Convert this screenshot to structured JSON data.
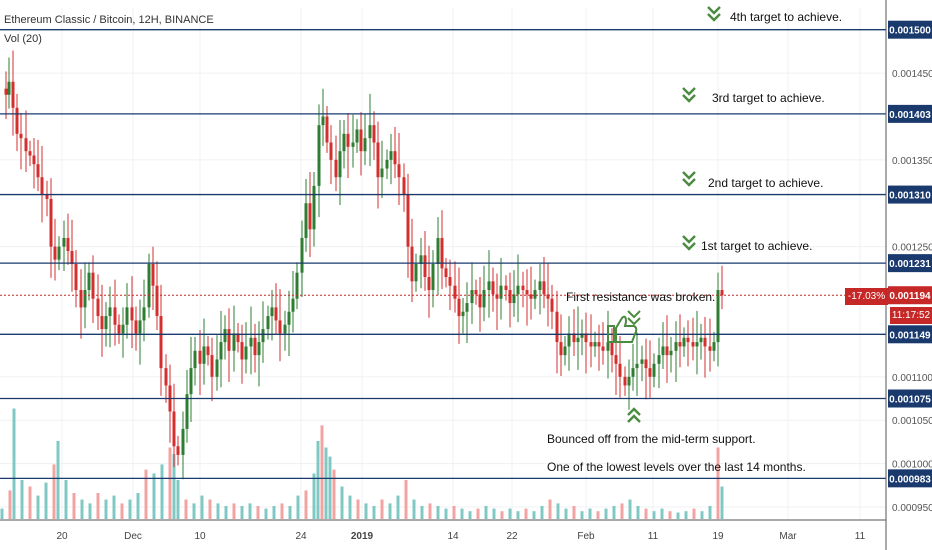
{
  "header": {
    "symbol": "Ethereum Classic / Bitcoin, 12H, BINANCE",
    "volume_indicator": "Vol (20)"
  },
  "price_badge": {
    "change": "-17.03%",
    "countdown": "11:17:52"
  },
  "colors": {
    "up_candle": "#2e7d32",
    "down_candle": "#d32f2f",
    "level_line": "#1a3a6e",
    "current_price": "#c62828",
    "volume_up": "#7fc8c3",
    "volume_down": "#f4a3a3",
    "annotation_icon": "#4a8c3f"
  },
  "chart_data": {
    "type": "candlestick",
    "x_tick_labels": [
      "20",
      "Dec",
      "10",
      "24",
      "2019",
      "14",
      "22",
      "Feb",
      "11",
      "19",
      "Mar",
      "11"
    ],
    "y_tick_labels": [
      "0.001450",
      "0.001350",
      "0.001250",
      "0.001100",
      "0.001050",
      "0.001000",
      "0.000950"
    ],
    "ylim": [
      0.000935,
      0.001525
    ],
    "levels": [
      {
        "value": 0.0015,
        "label": "0.001500"
      },
      {
        "value": 0.001403,
        "label": "0.001403"
      },
      {
        "value": 0.00131,
        "label": "0.001310"
      },
      {
        "value": 0.001231,
        "label": "0.001231"
      },
      {
        "value": 0.001149,
        "label": "0.001149"
      },
      {
        "value": 0.001075,
        "label": "0.001075"
      },
      {
        "value": 0.000983,
        "label": "0.000983"
      }
    ],
    "current_price": {
      "value": 0.001194,
      "label": "0.001194"
    },
    "annotations": [
      {
        "id": "target4",
        "text": "4th target to achieve.",
        "marker": "down-chevrons",
        "anchor_price": 0.0015
      },
      {
        "id": "target3",
        "text": "3rd target to achieve.",
        "marker": "down-chevrons",
        "anchor_price": 0.001403
      },
      {
        "id": "target2",
        "text": "2nd target to achieve.",
        "marker": "down-chevrons",
        "anchor_price": 0.00131
      },
      {
        "id": "target1",
        "text": "1st target to achieve.",
        "marker": "down-chevrons",
        "anchor_price": 0.001231
      },
      {
        "id": "resistance",
        "text": "First resistance was broken.",
        "marker": "thumbs-up",
        "anchor_price": 0.001149
      },
      {
        "id": "support",
        "text": "Bounced off from the mid-term support.",
        "marker": "up-chevrons",
        "anchor_price": 0.001075
      },
      {
        "id": "lowest",
        "text": "One of the lowest levels over the last 14 months.",
        "marker": "none",
        "anchor_price": 0.000983
      }
    ],
    "price_path": [
      [
        0,
        0.001432
      ],
      [
        4,
        0.001425
      ],
      [
        7,
        0.00144
      ],
      [
        11,
        0.00141
      ],
      [
        15,
        0.00138
      ],
      [
        19,
        0.001375
      ],
      [
        24,
        0.00136
      ],
      [
        28,
        0.001355
      ],
      [
        32,
        0.001345
      ],
      [
        36,
        0.00133
      ],
      [
        40,
        0.00131
      ],
      [
        45,
        0.001305
      ],
      [
        49,
        0.00125
      ],
      [
        53,
        0.001235
      ],
      [
        57,
        0.00125
      ],
      [
        62,
        0.00126
      ],
      [
        66,
        0.001245
      ],
      [
        70,
        0.00123
      ],
      [
        74,
        0.0012
      ],
      [
        79,
        0.00118
      ],
      [
        83,
        0.0012
      ],
      [
        87,
        0.00122
      ],
      [
        91,
        0.00119
      ],
      [
        96,
        0.00117
      ],
      [
        100,
        0.001155
      ],
      [
        104,
        0.00117
      ],
      [
        108,
        0.00118
      ],
      [
        113,
        0.00116
      ],
      [
        117,
        0.00115
      ],
      [
        121,
        0.00116
      ],
      [
        125,
        0.00118
      ],
      [
        130,
        0.001165
      ],
      [
        134,
        0.00115
      ],
      [
        138,
        0.001165
      ],
      [
        142,
        0.00118
      ],
      [
        147,
        0.00123
      ],
      [
        151,
        0.001205
      ],
      [
        155,
        0.00117
      ],
      [
        159,
        0.00111
      ],
      [
        164,
        0.00109
      ],
      [
        168,
        0.00106
      ],
      [
        172,
        0.00102
      ],
      [
        176,
        0.00101
      ],
      [
        181,
        0.00104
      ],
      [
        185,
        0.00108
      ],
      [
        189,
        0.00111
      ],
      [
        193,
        0.00113
      ],
      [
        198,
        0.001115
      ],
      [
        202,
        0.001135
      ],
      [
        206,
        0.001125
      ],
      [
        210,
        0.0011
      ],
      [
        215,
        0.00112
      ],
      [
        219,
        0.00114
      ],
      [
        223,
        0.001155
      ],
      [
        227,
        0.00113
      ],
      [
        232,
        0.00115
      ],
      [
        236,
        0.00114
      ],
      [
        240,
        0.00112
      ],
      [
        244,
        0.001135
      ],
      [
        249,
        0.001145
      ],
      [
        253,
        0.001125
      ],
      [
        257,
        0.00114
      ],
      [
        261,
        0.001155
      ],
      [
        266,
        0.00117
      ],
      [
        270,
        0.00118
      ],
      [
        274,
        0.001165
      ],
      [
        278,
        0.00115
      ],
      [
        283,
        0.00116
      ],
      [
        287,
        0.001175
      ],
      [
        291,
        0.00119
      ],
      [
        295,
        0.00122
      ],
      [
        300,
        0.00126
      ],
      [
        304,
        0.0013
      ],
      [
        308,
        0.00127
      ],
      [
        312,
        0.00132
      ],
      [
        317,
        0.00139
      ],
      [
        321,
        0.0014
      ],
      [
        325,
        0.00137
      ],
      [
        329,
        0.00135
      ],
      [
        334,
        0.00133
      ],
      [
        338,
        0.00136
      ],
      [
        342,
        0.00138
      ],
      [
        346,
        0.001365
      ],
      [
        351,
        0.00137
      ],
      [
        355,
        0.001385
      ],
      [
        359,
        0.00136
      ],
      [
        363,
        0.001375
      ],
      [
        368,
        0.00139
      ],
      [
        372,
        0.00137
      ],
      [
        376,
        0.00133
      ],
      [
        380,
        0.00134
      ],
      [
        385,
        0.00135
      ],
      [
        389,
        0.00136
      ],
      [
        393,
        0.001345
      ],
      [
        397,
        0.00133
      ],
      [
        402,
        0.00131
      ],
      [
        406,
        0.00125
      ],
      [
        410,
        0.00121
      ],
      [
        414,
        0.00123
      ],
      [
        419,
        0.00124
      ],
      [
        423,
        0.001215
      ],
      [
        427,
        0.0012
      ],
      [
        431,
        0.00123
      ],
      [
        436,
        0.00126
      ],
      [
        440,
        0.001225
      ],
      [
        444,
        0.001215
      ],
      [
        448,
        0.001205
      ],
      [
        453,
        0.00119
      ],
      [
        457,
        0.00117
      ],
      [
        461,
        0.001175
      ],
      [
        465,
        0.001185
      ],
      [
        470,
        0.0012
      ],
      [
        474,
        0.001195
      ],
      [
        478,
        0.00118
      ],
      [
        482,
        0.0012
      ],
      [
        487,
        0.00121
      ],
      [
        491,
        0.001195
      ],
      [
        495,
        0.00119
      ],
      [
        499,
        0.001205
      ],
      [
        504,
        0.0012
      ],
      [
        508,
        0.001185
      ],
      [
        512,
        0.001195
      ],
      [
        516,
        0.001205
      ],
      [
        521,
        0.0012
      ],
      [
        525,
        0.001195
      ],
      [
        529,
        0.00119
      ],
      [
        533,
        0.0012
      ],
      [
        538,
        0.00121
      ],
      [
        542,
        0.001195
      ],
      [
        546,
        0.00119
      ],
      [
        550,
        0.001175
      ],
      [
        555,
        0.00114
      ],
      [
        559,
        0.001125
      ],
      [
        563,
        0.001135
      ],
      [
        567,
        0.00115
      ],
      [
        572,
        0.00114
      ],
      [
        576,
        0.001145
      ],
      [
        580,
        0.00115
      ],
      [
        584,
        0.00114
      ],
      [
        589,
        0.001135
      ],
      [
        593,
        0.00114
      ],
      [
        597,
        0.001135
      ],
      [
        601,
        0.00113
      ],
      [
        606,
        0.00114
      ],
      [
        610,
        0.001125
      ],
      [
        614,
        0.001115
      ],
      [
        618,
        0.0011
      ],
      [
        623,
        0.00109
      ],
      [
        627,
        0.0011
      ],
      [
        631,
        0.00111
      ],
      [
        635,
        0.001115
      ],
      [
        640,
        0.00112
      ],
      [
        644,
        0.00111
      ],
      [
        648,
        0.0011
      ],
      [
        652,
        0.001115
      ],
      [
        657,
        0.001125
      ],
      [
        661,
        0.001135
      ],
      [
        665,
        0.001125
      ],
      [
        669,
        0.00113
      ],
      [
        674,
        0.00114
      ],
      [
        678,
        0.001135
      ],
      [
        682,
        0.001145
      ],
      [
        686,
        0.00114
      ],
      [
        691,
        0.001135
      ],
      [
        695,
        0.00114
      ],
      [
        699,
        0.001145
      ],
      [
        703,
        0.001135
      ],
      [
        708,
        0.00113
      ],
      [
        712,
        0.00114
      ],
      [
        716,
        0.0012
      ],
      [
        720,
        0.001194
      ]
    ],
    "volume": [
      [
        0,
        0.08
      ],
      [
        8,
        0.22
      ],
      [
        12,
        0.85
      ],
      [
        20,
        0.3
      ],
      [
        28,
        0.25
      ],
      [
        36,
        0.18
      ],
      [
        44,
        0.28
      ],
      [
        52,
        0.42
      ],
      [
        56,
        0.6
      ],
      [
        64,
        0.3
      ],
      [
        72,
        0.2
      ],
      [
        80,
        0.15
      ],
      [
        88,
        0.12
      ],
      [
        96,
        0.2
      ],
      [
        104,
        0.15
      ],
      [
        112,
        0.18
      ],
      [
        120,
        0.12
      ],
      [
        128,
        0.15
      ],
      [
        136,
        0.2
      ],
      [
        144,
        0.38
      ],
      [
        152,
        0.35
      ],
      [
        160,
        0.42
      ],
      [
        168,
        0.55
      ],
      [
        172,
        0.5
      ],
      [
        176,
        0.3
      ],
      [
        184,
        0.15
      ],
      [
        192,
        0.12
      ],
      [
        200,
        0.18
      ],
      [
        208,
        0.15
      ],
      [
        216,
        0.12
      ],
      [
        224,
        0.1
      ],
      [
        232,
        0.12
      ],
      [
        240,
        0.1
      ],
      [
        248,
        0.12
      ],
      [
        256,
        0.1
      ],
      [
        264,
        0.08
      ],
      [
        272,
        0.1
      ],
      [
        280,
        0.12
      ],
      [
        288,
        0.1
      ],
      [
        296,
        0.18
      ],
      [
        304,
        0.22
      ],
      [
        312,
        0.35
      ],
      [
        316,
        0.6
      ],
      [
        320,
        0.72
      ],
      [
        324,
        0.55
      ],
      [
        328,
        0.48
      ],
      [
        332,
        0.38
      ],
      [
        340,
        0.25
      ],
      [
        348,
        0.18
      ],
      [
        356,
        0.15
      ],
      [
        364,
        0.12
      ],
      [
        372,
        0.1
      ],
      [
        380,
        0.15
      ],
      [
        388,
        0.12
      ],
      [
        396,
        0.18
      ],
      [
        404,
        0.3
      ],
      [
        412,
        0.15
      ],
      [
        420,
        0.1
      ],
      [
        428,
        0.12
      ],
      [
        436,
        0.1
      ],
      [
        444,
        0.08
      ],
      [
        452,
        0.1
      ],
      [
        460,
        0.08
      ],
      [
        468,
        0.06
      ],
      [
        476,
        0.08
      ],
      [
        484,
        0.1
      ],
      [
        492,
        0.08
      ],
      [
        500,
        0.06
      ],
      [
        508,
        0.08
      ],
      [
        516,
        0.06
      ],
      [
        524,
        0.08
      ],
      [
        532,
        0.06
      ],
      [
        540,
        0.1
      ],
      [
        548,
        0.15
      ],
      [
        556,
        0.12
      ],
      [
        564,
        0.08
      ],
      [
        572,
        0.1
      ],
      [
        580,
        0.06
      ],
      [
        588,
        0.08
      ],
      [
        596,
        0.06
      ],
      [
        604,
        0.08
      ],
      [
        612,
        0.1
      ],
      [
        620,
        0.12
      ],
      [
        628,
        0.15
      ],
      [
        636,
        0.1
      ],
      [
        644,
        0.08
      ],
      [
        652,
        0.06
      ],
      [
        660,
        0.08
      ],
      [
        668,
        0.06
      ],
      [
        676,
        0.05
      ],
      [
        684,
        0.06
      ],
      [
        692,
        0.08
      ],
      [
        700,
        0.06
      ],
      [
        708,
        0.1
      ],
      [
        716,
        0.55
      ],
      [
        720,
        0.25
      ]
    ]
  }
}
